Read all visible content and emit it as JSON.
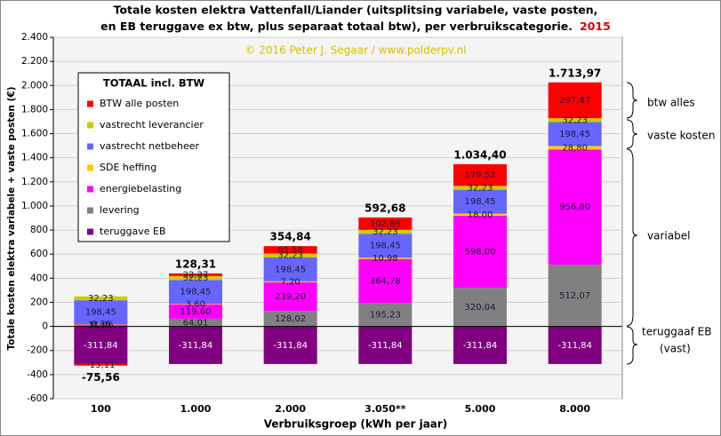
{
  "chart_data": {
    "type": "stacked-bar",
    "title": [
      "Totale kosten elektra Vattenfall/Liander  (uitsplitsing  variabele, vaste posten,",
      "en EB teruggave ex btw, plus separaat totaal btw), per verbruikscategorie."
    ],
    "year_label": "2015",
    "subtitle": "© 2016 Peter J. Segaar / www.polderpv.nl",
    "x_label": "Verbruiksgroep  (kWh  per jaar)",
    "y_label": "Totale kosten elektra variabele + vaste posten (€)",
    "legend_title": "TOTAAL incl. BTW",
    "categories": [
      "100",
      "1.000",
      "2.000",
      "3.050**",
      "5.000",
      "8.000"
    ],
    "series": [
      {
        "name": "teruggave EB",
        "color": "#800080",
        "values": [
          -311.84,
          -311.84,
          -311.84,
          -311.84,
          -311.84,
          -311.84
        ],
        "value_labels": [
          "-311,84",
          "-311,84",
          "-311,84",
          "-311,84",
          "-311,84",
          "-311,84"
        ]
      },
      {
        "name": "levering",
        "color": "#808080",
        "values": [
          6.4,
          64.01,
          128.02,
          195.23,
          320.04,
          512.07
        ],
        "value_labels": [
          "6,40",
          "64,01",
          "128,02",
          "195,23",
          "320,04",
          "512,07"
        ]
      },
      {
        "name": "energiebelasting",
        "color": "#ff00ff",
        "values": [
          11.96,
          119.6,
          239.2,
          364.78,
          598.0,
          956.8
        ],
        "value_labels": [
          "11,96",
          "119,60",
          "239,20",
          "364,78",
          "598,00",
          "956,80"
        ]
      },
      {
        "name": "SDE heffing",
        "color": "#ffcc00",
        "values": [
          0.36,
          3.6,
          7.2,
          10.98,
          18.0,
          28.8
        ],
        "value_labels": [
          "0,36",
          "3,60",
          "7,20",
          "10,98",
          "18,00",
          "28,80"
        ]
      },
      {
        "name": "vastrecht netbeheer",
        "color": "#6666ff",
        "values": [
          198.45,
          198.45,
          198.45,
          198.45,
          198.45,
          198.45
        ],
        "value_labels": [
          "198,45",
          "198,45",
          "198,45",
          "198,45",
          "198,45",
          "198,45"
        ]
      },
      {
        "name": "vastrecht leverancier",
        "color": "#cccc00",
        "values": [
          32.23,
          32.23,
          32.23,
          32.23,
          32.23,
          32.23
        ],
        "value_labels": [
          "32,23",
          "32,23",
          "32,23",
          "32,23",
          "32,23",
          "32,23"
        ]
      },
      {
        "name": "BTW alle posten",
        "color": "#ff0000",
        "values": [
          -13.11,
          22.27,
          61.58,
          102.86,
          179.52,
          297.47
        ],
        "value_labels": [
          "-13,11",
          "22,27",
          "61,58",
          "102,86",
          "179,52",
          "297,47"
        ]
      }
    ],
    "totals": {
      "values": [
        -75.56,
        128.31,
        354.84,
        592.68,
        1034.4,
        1713.97
      ],
      "value_labels": [
        "-75,56",
        "128,31",
        "354,84",
        "592,68",
        "1.034,40",
        "1.713,97"
      ]
    },
    "ylim": [
      -600,
      2400
    ],
    "yticks": [
      -600,
      -400,
      -200,
      0,
      200,
      400,
      600,
      800,
      {
        "value": 1000,
        "label": "1.000"
      },
      {
        "value": 1200,
        "label": "1.200"
      },
      {
        "value": 1400,
        "label": "1.400"
      },
      {
        "value": 1600,
        "label": "1.600"
      },
      {
        "value": 1800,
        "label": "1.800"
      },
      {
        "value": 2000,
        "label": "2.000"
      },
      {
        "value": 2200,
        "label": "2.200"
      },
      {
        "value": 2400,
        "label": "2.400"
      }
    ],
    "grid": true,
    "legend_position": "upper left",
    "annotations": [
      "btw alles",
      "vaste kosten",
      "variabel",
      "teruggaaf EB",
      "(vast)"
    ]
  }
}
